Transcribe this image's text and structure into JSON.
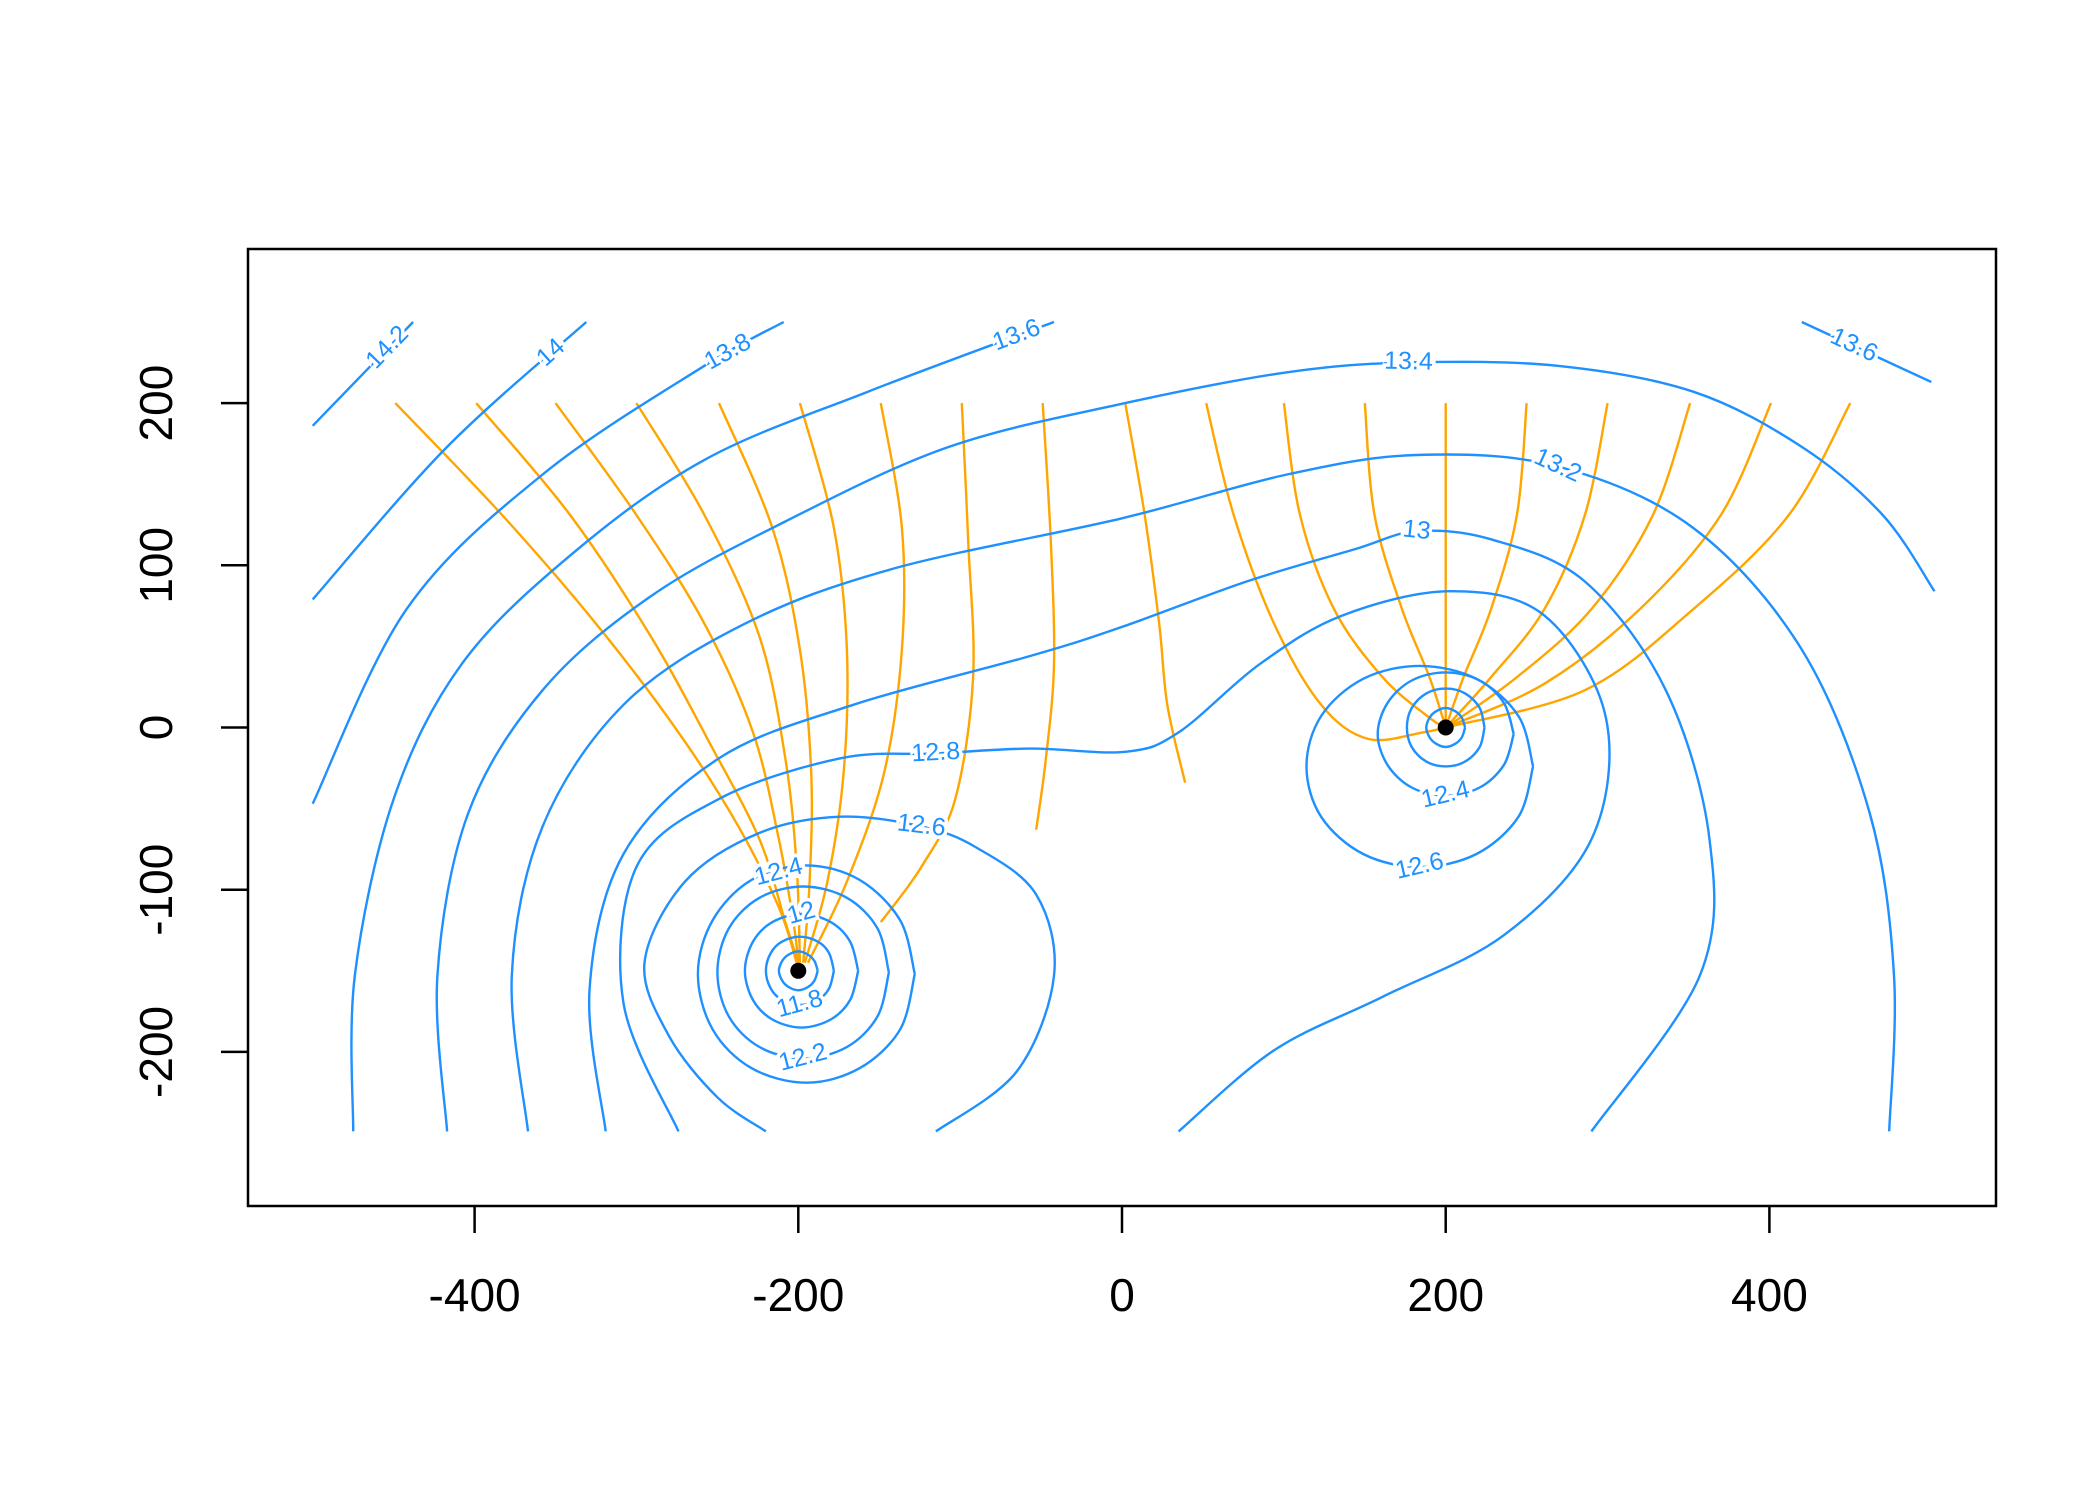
{
  "chart_data": {
    "type": "contour",
    "xlim": [
      -540,
      540
    ],
    "ylim": [
      -295,
      295
    ],
    "xticks": [
      -400,
      -200,
      0,
      200,
      400
    ],
    "yticks": [
      -200,
      -100,
      0,
      100,
      200
    ],
    "contour_color": "#1e90ff",
    "streamline_color": "#ffa500",
    "contours": [
      {
        "level": 14.2,
        "x": [
          -500,
          -438
        ],
        "y": [
          186,
          250
        ]
      },
      {
        "level": 14,
        "x": [
          -500,
          -417,
          -331
        ],
        "y": [
          79,
          173,
          250
        ]
      },
      {
        "level": 13.8,
        "x": [
          -500,
          -442,
          -358,
          -258,
          -209
        ],
        "y": [
          -47,
          73,
          156,
          223,
          250
        ]
      },
      {
        "level": 13.6,
        "x": [
          -475,
          -474,
          -450,
          -408,
          -341,
          -258,
          -157,
          -42
        ],
        "y": [
          -249,
          -153,
          -44,
          39,
          106,
          165,
          207,
          250
        ]
      },
      {
        "level": 13.6,
        "x": [
          420,
          500
        ],
        "y": [
          250,
          213
        ]
      },
      {
        "level": 13.4,
        "x": [
          -417,
          -423,
          -404,
          -358,
          -291,
          -208,
          -107,
          2,
          102,
          177,
          269,
          353,
          420,
          470,
          502
        ],
        "y": [
          -249,
          -153,
          -53,
          23,
          81,
          127,
          173,
          200,
          219,
          225,
          223,
          207,
          173,
          131,
          84
        ]
      },
      {
        "level": 13.2,
        "x": [
          -367,
          -377,
          -358,
          -308,
          -233,
          -141,
          0,
          102,
          182,
          269,
          353,
          420,
          462,
          477,
          474
        ],
        "y": [
          -249,
          -153,
          -61,
          14,
          64,
          98,
          129,
          156,
          168,
          161,
          123,
          48,
          -53,
          -153,
          -249
        ]
      },
      {
        "level": 13,
        "x": [
          -319,
          -329,
          -308,
          -249,
          -166,
          -57,
          0,
          77,
          144,
          182,
          228,
          286,
          336,
          363,
          357,
          290
        ],
        "y": [
          -249,
          -162,
          -78,
          -19,
          14,
          44,
          62,
          90,
          110,
          121,
          116,
          90,
          23,
          -69,
          -153,
          -249
        ]
      },
      {
        "level": 12.8,
        "x": [
          -274,
          -308,
          -300,
          -249,
          -174,
          -115,
          -57,
          2,
          35,
          85,
          136,
          203,
          261,
          299,
          290,
          236,
          161,
          94,
          35
        ],
        "y": [
          -249,
          -170,
          -86,
          -44,
          -19,
          -16,
          -13,
          -15,
          -3,
          39,
          69,
          84,
          69,
          6,
          -69,
          -128,
          -166,
          -199,
          -249
        ]
      },
      {
        "level": 12.6,
        "x": [
          -115,
          -65,
          -42,
          -53,
          -90,
          -124,
          -174,
          -224,
          -270,
          -295,
          -280,
          -250,
          -220
        ],
        "y": [
          -249,
          -212,
          -153,
          -103,
          -74,
          -61,
          -55,
          -65,
          -95,
          -145,
          -190,
          -228,
          -249
        ]
      },
      {
        "level": 12.4,
        "x": [
          -128,
          -137,
          -162,
          -195,
          -229,
          -253,
          -262,
          -253,
          -229,
          -195,
          -162,
          -137,
          -128
        ],
        "y": [
          -152,
          -119,
          -94,
          -85,
          -94,
          -119,
          -152,
          -186,
          -210,
          -219,
          -210,
          -186,
          -152
        ]
      },
      {
        "level": 12.2,
        "x": [
          -144,
          -151,
          -170,
          -197,
          -224,
          -243,
          -250,
          -243,
          -224,
          -197,
          -170,
          -151,
          -144
        ],
        "y": [
          -151,
          -124,
          -105,
          -98,
          -105,
          -124,
          -151,
          -178,
          -197,
          -204,
          -197,
          -178,
          -151
        ]
      },
      {
        "level": 12,
        "x": [
          -163,
          -168,
          -180,
          -198,
          -216,
          -228,
          -233,
          -228,
          -216,
          -198,
          -180,
          -168,
          -163
        ],
        "y": [
          -150,
          -132,
          -120,
          -115,
          -120,
          -132,
          -150,
          -168,
          -180,
          -185,
          -180,
          -168,
          -150
        ]
      },
      {
        "level": 11.8,
        "x": [
          -178,
          -181,
          -188,
          -199,
          -210,
          -217,
          -220,
          -217,
          -210,
          -199,
          -188,
          -181,
          -178
        ],
        "y": [
          -150,
          -139,
          -132,
          -129,
          -132,
          -139,
          -150,
          -161,
          -168,
          -171,
          -168,
          -161,
          -150
        ]
      },
      {
        "x": [
          -188,
          -190,
          -194,
          -200,
          -206,
          -210,
          -212,
          -210,
          -206,
          -200,
          -194,
          -190,
          -188
        ],
        "y": [
          -150,
          -144,
          -140,
          -138,
          -140,
          -144,
          -150,
          -156,
          -160,
          -162,
          -160,
          -156,
          -150
        ]
      },
      {
        "level": 12.6,
        "x": [
          254,
          245,
          219,
          184,
          149,
          123,
          114,
          123,
          149,
          184,
          219,
          245,
          254
        ],
        "y": [
          -24,
          7,
          30,
          38,
          30,
          7,
          -24,
          -55,
          -78,
          -86,
          -78,
          -55,
          -24
        ]
      },
      {
        "level": 12.4,
        "x": [
          242,
          236,
          221,
          200,
          179,
          164,
          158,
          164,
          179,
          200,
          221,
          236,
          242
        ],
        "y": [
          -4,
          15,
          29,
          34,
          29,
          15,
          -4,
          -23,
          -37,
          -42,
          -37,
          -23,
          -4
        ]
      },
      {
        "x": [
          224,
          221,
          212,
          200,
          188,
          179,
          176,
          179,
          188,
          200,
          212,
          221,
          224
        ],
        "y": [
          0,
          12,
          21,
          24,
          21,
          12,
          0,
          -12,
          -21,
          -24,
          -21,
          -12,
          0
        ]
      },
      {
        "x": [
          212,
          210,
          206,
          200,
          194,
          190,
          188,
          190,
          194,
          200,
          206,
          210,
          212
        ],
        "y": [
          0,
          6,
          10,
          12,
          10,
          6,
          0,
          -6,
          -10,
          -12,
          -10,
          -6,
          0
        ]
      }
    ],
    "streamlines": [
      {
        "x": [
          -449,
          -383,
          -325,
          -274,
          -237,
          -212,
          -201
        ],
        "y": [
          200,
          131,
          64,
          -3,
          -61,
          -111,
          -145
        ]
      },
      {
        "x": [
          -399,
          -341,
          -291,
          -254,
          -224,
          -208,
          -200
        ],
        "y": [
          200,
          131,
          56,
          -11,
          -69,
          -120,
          -145
        ]
      },
      {
        "x": [
          -350,
          -300,
          -258,
          -228,
          -212,
          -203,
          -200
        ],
        "y": [
          200,
          131,
          64,
          -3,
          -69,
          -120,
          -145
        ]
      },
      {
        "x": [
          -300,
          -258,
          -224,
          -208,
          -201,
          -199
        ],
        "y": [
          200,
          131,
          56,
          -19,
          -86,
          -145
        ]
      },
      {
        "x": [
          -249,
          -216,
          -199,
          -192,
          -193,
          -197
        ],
        "y": [
          200,
          123,
          48,
          -28,
          -95,
          -145
        ]
      },
      {
        "x": [
          -199,
          -178,
          -170,
          -172,
          -182,
          -196
        ],
        "y": [
          200,
          123,
          48,
          -28,
          -95,
          -145
        ]
      },
      {
        "x": [
          -149,
          -136,
          -136,
          -147,
          -170,
          -194
        ],
        "y": [
          200,
          123,
          48,
          -28,
          -95,
          -145
        ]
      },
      {
        "x": [
          -99,
          -95,
          -92,
          -103,
          -124,
          -149
        ],
        "y": [
          200,
          115,
          31,
          -44,
          -86,
          -120
        ]
      },
      {
        "x": [
          -49,
          -44,
          -42,
          -47,
          -53
        ],
        "y": [
          200,
          115,
          39,
          -19,
          -63
        ]
      },
      {
        "x": [
          2,
          14,
          23,
          28,
          39
        ],
        "y": [
          200,
          131,
          64,
          14,
          -34
        ]
      },
      {
        "x": [
          52,
          69,
          94,
          123,
          152,
          186,
          200
        ],
        "y": [
          200,
          131,
          64,
          14,
          -7,
          -3,
          0
        ]
      },
      {
        "x": [
          100,
          110,
          131,
          161,
          190,
          200
        ],
        "y": [
          200,
          131,
          73,
          31,
          6,
          0
        ]
      },
      {
        "x": [
          150,
          156,
          173,
          190,
          200
        ],
        "y": [
          200,
          131,
          73,
          31,
          0
        ]
      },
      {
        "x": [
          200,
          200
        ],
        "y": [
          200,
          0
        ]
      },
      {
        "x": [
          250,
          244,
          228,
          211,
          200
        ],
        "y": [
          200,
          131,
          73,
          31,
          0
        ]
      },
      {
        "x": [
          300,
          286,
          261,
          228,
          200
        ],
        "y": [
          200,
          131,
          73,
          31,
          0
        ]
      },
      {
        "x": [
          351,
          328,
          290,
          244,
          200
        ],
        "y": [
          200,
          131,
          73,
          31,
          0
        ]
      },
      {
        "x": [
          401,
          370,
          320,
          261,
          200
        ],
        "y": [
          200,
          131,
          73,
          27,
          0
        ]
      },
      {
        "x": [
          450,
          412,
          353,
          286,
          200
        ],
        "y": [
          200,
          131,
          73,
          23,
          0
        ]
      }
    ],
    "points": {
      "x": [
        -200,
        200
      ],
      "y": [
        -150,
        0
      ],
      "color": "#000000"
    }
  }
}
